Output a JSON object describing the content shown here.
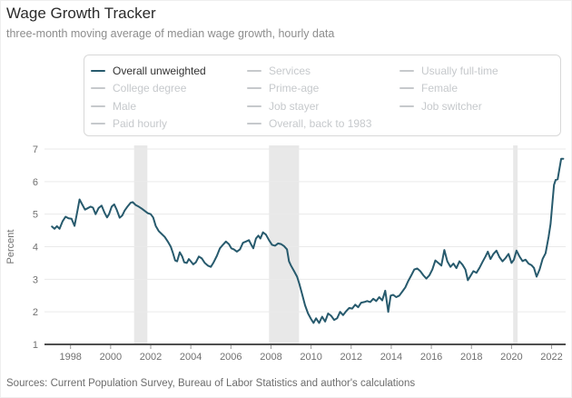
{
  "header": {
    "title": "Wage Growth Tracker",
    "subtitle": "three-month moving average of median wage growth, hourly data"
  },
  "footer": {
    "sources": "Sources: Current Population Survey, Bureau of Labor Statistics and author's calculations"
  },
  "colors": {
    "accent": "#275a6d",
    "inactive": "#c6c9cc",
    "grid": "#eaeaea",
    "band": "#e8e8e8",
    "axis": "#4f4f4f",
    "tick_line": "#999999",
    "tick_text": "#707070",
    "legend_active_text": "#333333",
    "legend_border": "#d8d8d8"
  },
  "legend": {
    "columns": [
      [
        {
          "label": "Overall unweighted",
          "active": true
        },
        {
          "label": "College degree",
          "active": false
        },
        {
          "label": "Male",
          "active": false
        },
        {
          "label": "Paid hourly",
          "active": false
        }
      ],
      [
        {
          "label": "Services",
          "active": false
        },
        {
          "label": "Prime-age",
          "active": false
        },
        {
          "label": "Job stayer",
          "active": false
        },
        {
          "label": "Overall, back to 1983",
          "active": false
        }
      ],
      [
        {
          "label": "Usually full-time",
          "active": false
        },
        {
          "label": "Female",
          "active": false
        },
        {
          "label": "Job switcher",
          "active": false
        }
      ]
    ]
  },
  "chart_data": {
    "type": "line",
    "title": "Wage Growth Tracker",
    "subtitle": "three-month moving average of median wage growth, hourly data",
    "xlabel": "",
    "ylabel": "Percent",
    "ylim": [
      1,
      7
    ],
    "yticks": [
      1,
      2,
      3,
      4,
      5,
      6,
      7
    ],
    "xlim": [
      1996.7,
      2022.7
    ],
    "xticks": [
      1998,
      2000,
      2002,
      2004,
      2006,
      2008,
      2010,
      2012,
      2014,
      2016,
      2018,
      2020,
      2022
    ],
    "grid": "horizontal",
    "legend_position": "top",
    "recession_bands": [
      [
        2001.17,
        2001.83
      ],
      [
        2007.9,
        2009.4
      ],
      [
        2020.08,
        2020.3
      ]
    ],
    "series": [
      {
        "name": "Overall unweighted",
        "color": "#275a6d",
        "points": [
          [
            1997.07,
            4.62
          ],
          [
            1997.2,
            4.55
          ],
          [
            1997.32,
            4.63
          ],
          [
            1997.45,
            4.55
          ],
          [
            1997.6,
            4.78
          ],
          [
            1997.75,
            4.92
          ],
          [
            1997.9,
            4.87
          ],
          [
            1998.05,
            4.86
          ],
          [
            1998.2,
            4.64
          ],
          [
            1998.35,
            5.12
          ],
          [
            1998.45,
            5.45
          ],
          [
            1998.6,
            5.28
          ],
          [
            1998.72,
            5.14
          ],
          [
            1998.85,
            5.18
          ],
          [
            1999.0,
            5.23
          ],
          [
            1999.12,
            5.2
          ],
          [
            1999.25,
            5.0
          ],
          [
            1999.4,
            5.19
          ],
          [
            1999.55,
            5.26
          ],
          [
            1999.7,
            5.04
          ],
          [
            1999.82,
            4.9
          ],
          [
            1999.92,
            5.0
          ],
          [
            2000.05,
            5.23
          ],
          [
            2000.18,
            5.3
          ],
          [
            2000.3,
            5.14
          ],
          [
            2000.45,
            4.89
          ],
          [
            2000.58,
            4.96
          ],
          [
            2000.7,
            5.11
          ],
          [
            2000.85,
            5.24
          ],
          [
            2001.0,
            5.35
          ],
          [
            2001.1,
            5.37
          ],
          [
            2001.25,
            5.28
          ],
          [
            2001.4,
            5.23
          ],
          [
            2001.55,
            5.17
          ],
          [
            2001.7,
            5.1
          ],
          [
            2001.85,
            5.03
          ],
          [
            2002.0,
            5.0
          ],
          [
            2002.12,
            4.9
          ],
          [
            2002.25,
            4.64
          ],
          [
            2002.4,
            4.48
          ],
          [
            2002.55,
            4.39
          ],
          [
            2002.7,
            4.3
          ],
          [
            2002.85,
            4.16
          ],
          [
            2003.0,
            4.0
          ],
          [
            2003.1,
            3.82
          ],
          [
            2003.22,
            3.58
          ],
          [
            2003.32,
            3.55
          ],
          [
            2003.45,
            3.83
          ],
          [
            2003.57,
            3.7
          ],
          [
            2003.67,
            3.52
          ],
          [
            2003.8,
            3.5
          ],
          [
            2003.9,
            3.62
          ],
          [
            2004.0,
            3.55
          ],
          [
            2004.12,
            3.46
          ],
          [
            2004.25,
            3.52
          ],
          [
            2004.4,
            3.7
          ],
          [
            2004.55,
            3.64
          ],
          [
            2004.7,
            3.5
          ],
          [
            2004.85,
            3.42
          ],
          [
            2005.0,
            3.38
          ],
          [
            2005.12,
            3.5
          ],
          [
            2005.3,
            3.72
          ],
          [
            2005.45,
            3.95
          ],
          [
            2005.6,
            4.06
          ],
          [
            2005.75,
            4.16
          ],
          [
            2005.9,
            4.08
          ],
          [
            2006.02,
            3.95
          ],
          [
            2006.15,
            3.92
          ],
          [
            2006.3,
            3.85
          ],
          [
            2006.45,
            3.92
          ],
          [
            2006.6,
            4.12
          ],
          [
            2006.75,
            4.16
          ],
          [
            2006.9,
            4.2
          ],
          [
            2007.02,
            4.06
          ],
          [
            2007.12,
            3.95
          ],
          [
            2007.25,
            4.25
          ],
          [
            2007.37,
            4.34
          ],
          [
            2007.47,
            4.25
          ],
          [
            2007.6,
            4.44
          ],
          [
            2007.75,
            4.37
          ],
          [
            2007.9,
            4.2
          ],
          [
            2008.05,
            4.06
          ],
          [
            2008.2,
            4.03
          ],
          [
            2008.35,
            4.1
          ],
          [
            2008.5,
            4.08
          ],
          [
            2008.65,
            4.02
          ],
          [
            2008.8,
            3.92
          ],
          [
            2008.9,
            3.55
          ],
          [
            2009.0,
            3.42
          ],
          [
            2009.15,
            3.25
          ],
          [
            2009.3,
            3.08
          ],
          [
            2009.42,
            2.85
          ],
          [
            2009.55,
            2.55
          ],
          [
            2009.7,
            2.2
          ],
          [
            2009.85,
            1.95
          ],
          [
            2010.0,
            1.78
          ],
          [
            2010.12,
            1.66
          ],
          [
            2010.25,
            1.8
          ],
          [
            2010.4,
            1.66
          ],
          [
            2010.55,
            1.85
          ],
          [
            2010.7,
            1.7
          ],
          [
            2010.85,
            1.95
          ],
          [
            2011.0,
            1.88
          ],
          [
            2011.15,
            1.75
          ],
          [
            2011.3,
            1.8
          ],
          [
            2011.45,
            2.0
          ],
          [
            2011.6,
            1.9
          ],
          [
            2011.75,
            2.02
          ],
          [
            2011.9,
            2.12
          ],
          [
            2012.05,
            2.1
          ],
          [
            2012.2,
            2.22
          ],
          [
            2012.35,
            2.14
          ],
          [
            2012.5,
            2.28
          ],
          [
            2012.65,
            2.3
          ],
          [
            2012.8,
            2.33
          ],
          [
            2012.95,
            2.3
          ],
          [
            2013.1,
            2.4
          ],
          [
            2013.25,
            2.33
          ],
          [
            2013.4,
            2.45
          ],
          [
            2013.55,
            2.35
          ],
          [
            2013.7,
            2.65
          ],
          [
            2013.85,
            2.0
          ],
          [
            2013.97,
            2.5
          ],
          [
            2014.1,
            2.52
          ],
          [
            2014.25,
            2.45
          ],
          [
            2014.4,
            2.5
          ],
          [
            2014.55,
            2.62
          ],
          [
            2014.7,
            2.75
          ],
          [
            2014.85,
            2.95
          ],
          [
            2015.0,
            3.12
          ],
          [
            2015.15,
            3.3
          ],
          [
            2015.3,
            3.33
          ],
          [
            2015.45,
            3.25
          ],
          [
            2015.6,
            3.12
          ],
          [
            2015.75,
            3.02
          ],
          [
            2015.9,
            3.12
          ],
          [
            2016.05,
            3.3
          ],
          [
            2016.2,
            3.58
          ],
          [
            2016.35,
            3.5
          ],
          [
            2016.5,
            3.42
          ],
          [
            2016.65,
            3.9
          ],
          [
            2016.8,
            3.55
          ],
          [
            2016.95,
            3.38
          ],
          [
            2017.1,
            3.48
          ],
          [
            2017.25,
            3.34
          ],
          [
            2017.4,
            3.55
          ],
          [
            2017.55,
            3.45
          ],
          [
            2017.7,
            3.3
          ],
          [
            2017.82,
            2.97
          ],
          [
            2017.95,
            3.1
          ],
          [
            2018.1,
            3.25
          ],
          [
            2018.25,
            3.2
          ],
          [
            2018.4,
            3.35
          ],
          [
            2018.55,
            3.53
          ],
          [
            2018.7,
            3.7
          ],
          [
            2018.82,
            3.85
          ],
          [
            2018.95,
            3.62
          ],
          [
            2019.1,
            3.78
          ],
          [
            2019.25,
            3.88
          ],
          [
            2019.4,
            3.68
          ],
          [
            2019.55,
            3.55
          ],
          [
            2019.7,
            3.65
          ],
          [
            2019.85,
            3.78
          ],
          [
            2020.0,
            3.5
          ],
          [
            2020.12,
            3.6
          ],
          [
            2020.25,
            3.88
          ],
          [
            2020.4,
            3.7
          ],
          [
            2020.55,
            3.56
          ],
          [
            2020.7,
            3.6
          ],
          [
            2020.85,
            3.48
          ],
          [
            2021.0,
            3.43
          ],
          [
            2021.12,
            3.35
          ],
          [
            2021.25,
            3.08
          ],
          [
            2021.4,
            3.3
          ],
          [
            2021.55,
            3.62
          ],
          [
            2021.7,
            3.8
          ],
          [
            2021.85,
            4.3
          ],
          [
            2021.95,
            4.7
          ],
          [
            2022.05,
            5.4
          ],
          [
            2022.12,
            5.9
          ],
          [
            2022.2,
            6.05
          ],
          [
            2022.3,
            6.07
          ],
          [
            2022.38,
            6.35
          ],
          [
            2022.48,
            6.7
          ],
          [
            2022.58,
            6.7
          ]
        ]
      }
    ]
  }
}
